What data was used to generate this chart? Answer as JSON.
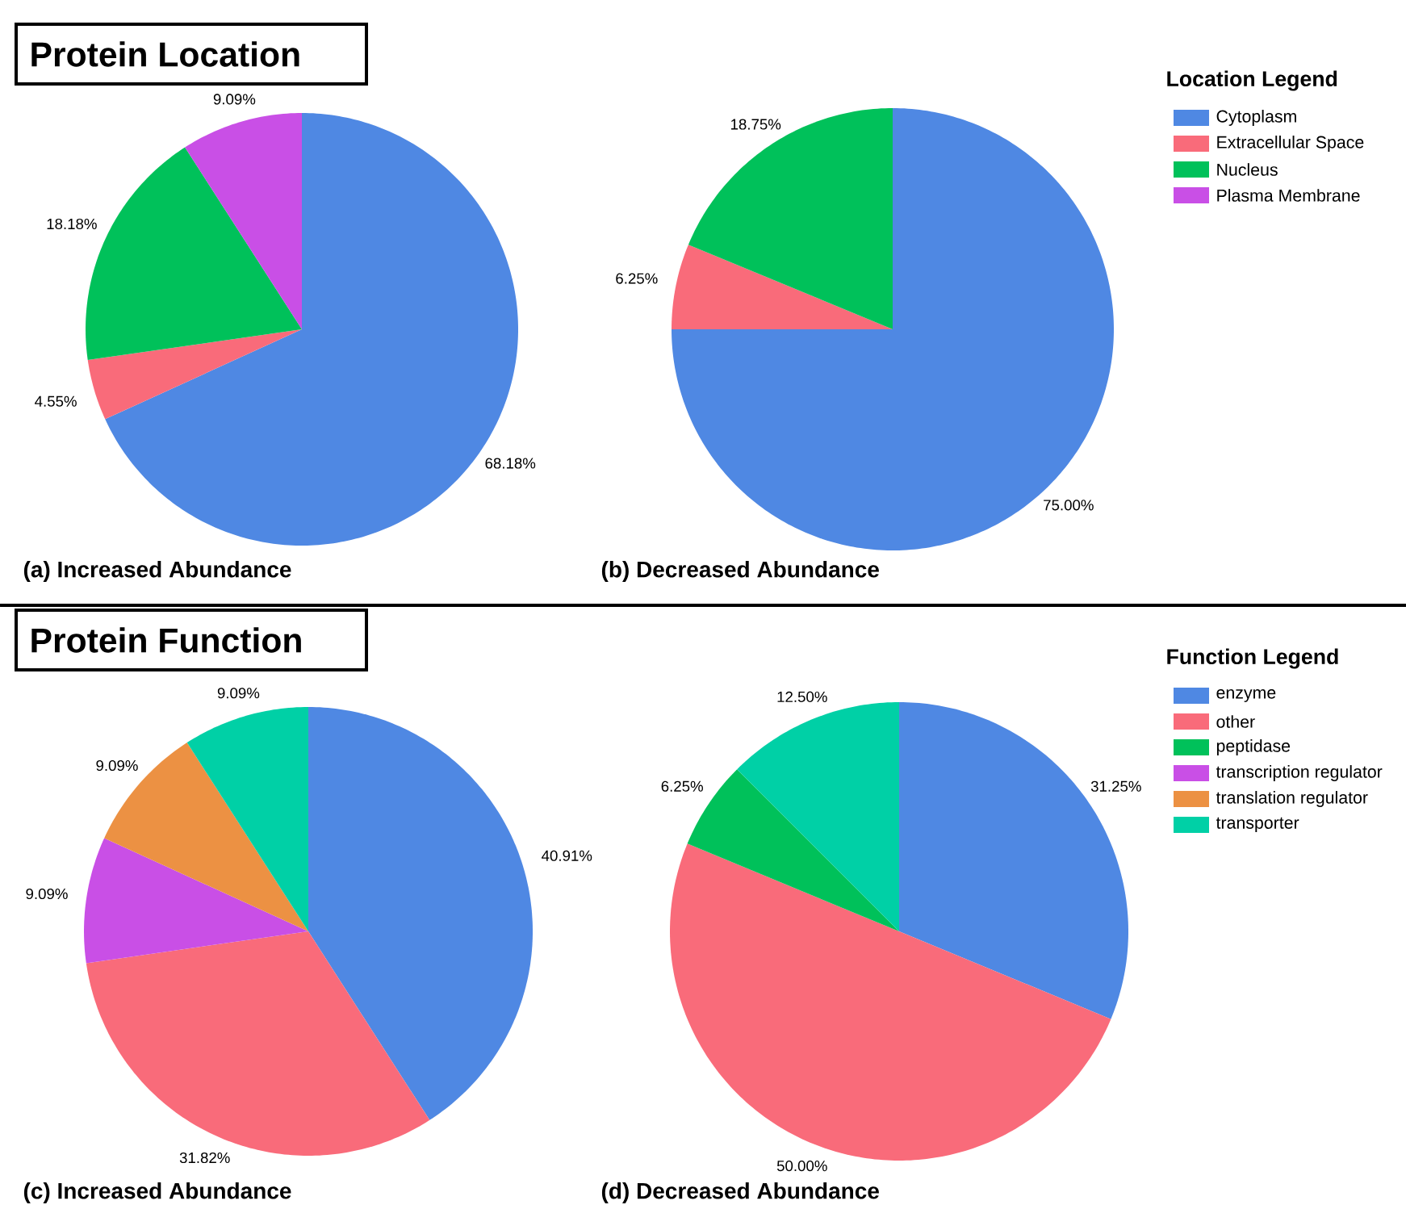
{
  "chart_data": [
    {
      "type": "pie",
      "title": "(a) Increased Abundance",
      "annotations": [
        "Protein Location"
      ],
      "legend": "right",
      "legend_title": "Location Legend",
      "categories": [
        "Cytoplasm",
        "Extracellular Space",
        "Nucleus",
        "Plasma Membrane"
      ],
      "values": [
        68.18,
        4.55,
        18.18,
        9.09
      ],
      "value_labels": [
        "68.18%",
        "4.55%",
        "18.18%",
        "9.09%"
      ],
      "colors": [
        "#4f88e3",
        "#f96b7a",
        "#00c15a",
        "#c94fe6"
      ]
    },
    {
      "type": "pie",
      "title": "(b) Decreased Abundance",
      "categories": [
        null,
        null,
        null
      ],
      "values": [
        75,
        6.25,
        18.75
      ],
      "value_labels": [
        "75.00%",
        "6.25%",
        "18.75%"
      ],
      "colors": [
        "#4f88e3",
        "#f96b7a",
        "#00c15a"
      ]
    },
    {
      "type": "pie",
      "title": "(c) Increased Abundance",
      "annotations": [
        "Protein Function"
      ],
      "legend": "right",
      "legend_title": "Function Legend",
      "categories": [
        "enzyme",
        "other",
        "peptidase",
        "transcription regulator",
        "translation regulator",
        "transporter"
      ],
      "values": [
        40.91,
        31.82,
        0,
        9.09,
        9.09,
        9.09
      ],
      "value_labels": [
        "40.91%",
        "31.82%",
        null,
        "9.09%",
        "9.09%",
        "9.09%"
      ],
      "colors": [
        "#4f88e3",
        "#f96b7a",
        "#00c15a",
        "#c94fe6",
        "#ec9143",
        "#00d0a6"
      ]
    },
    {
      "type": "pie",
      "title": "(d) Decreased Abundance",
      "categories": [
        null,
        null,
        null,
        null
      ],
      "values": [
        31.25,
        50,
        6.25,
        12.5
      ],
      "value_labels": [
        "31.25%",
        "50.00%",
        "6.25%",
        "12.50%"
      ],
      "colors": [
        "#4f88e3",
        "#f96b7a",
        "#00c15a",
        "#00d0a6"
      ]
    }
  ]
}
